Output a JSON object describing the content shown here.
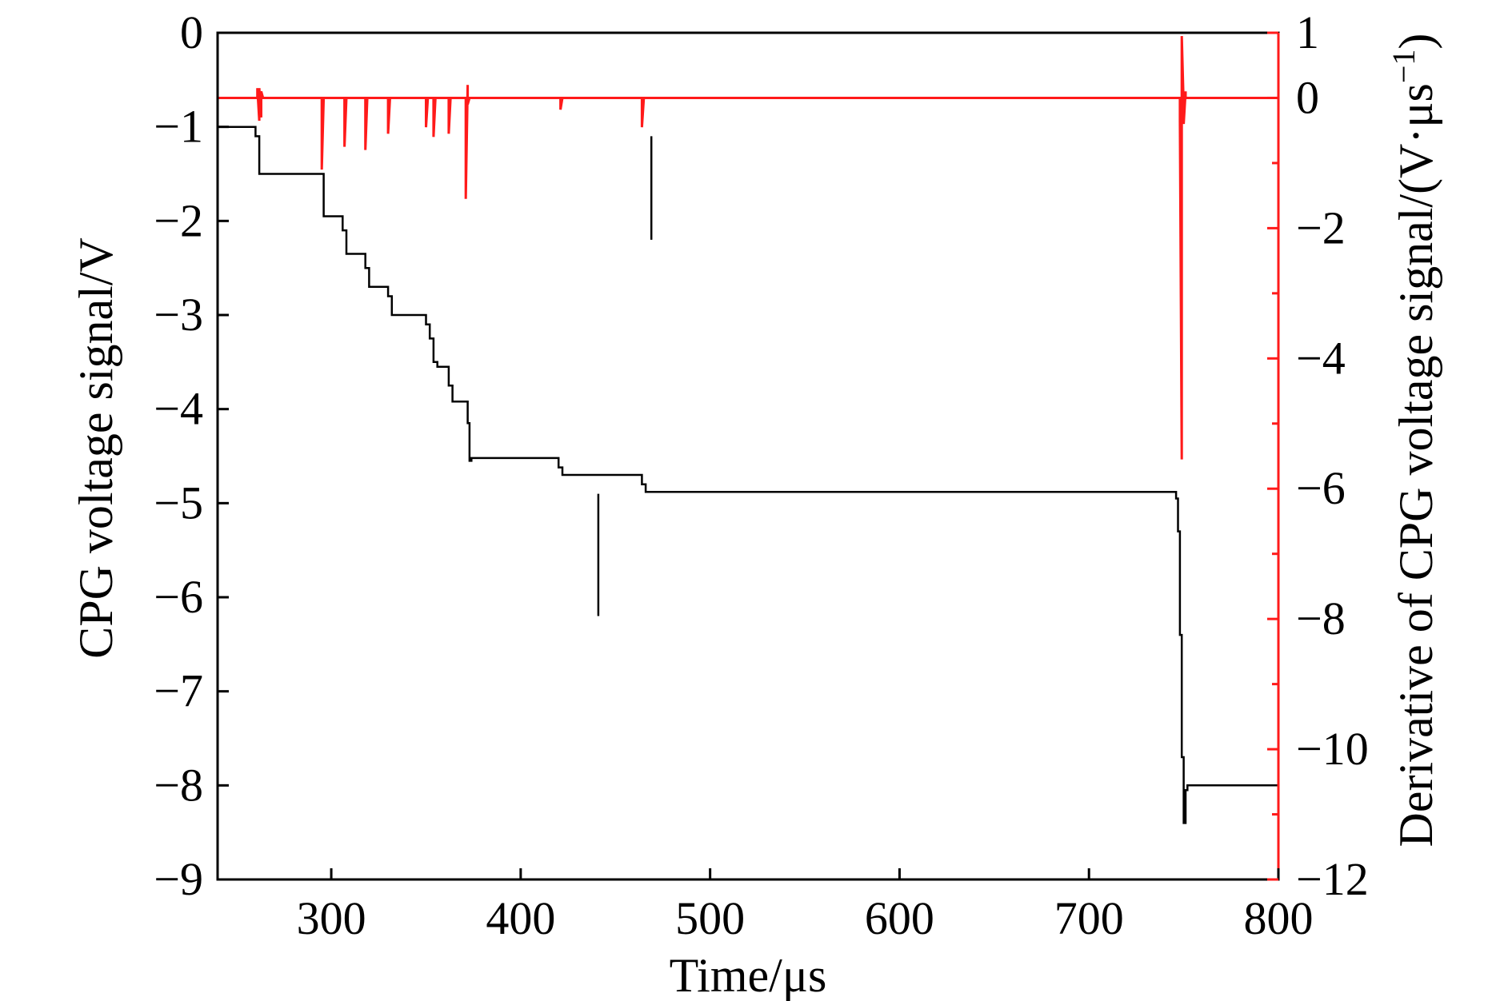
{
  "colors": {
    "primary": "#000000",
    "secondary": "#ff1a1a",
    "background": "#ffffff"
  },
  "chart_data": {
    "type": "line",
    "xlabel": "Time/μs",
    "ylabel_left": "CPG voltage signal/V",
    "ylabel_right": "Derivative of CPG voltage signal/(V·μs",
    "ylabel_right_sup": "−1",
    "ylabel_right_close": ")",
    "xlim": [
      240,
      800
    ],
    "ylim_left": [
      -9,
      0
    ],
    "ylim_right": [
      -12,
      1
    ],
    "x_ticks": [
      300,
      400,
      500,
      600,
      700,
      800
    ],
    "x_tick_labels": [
      "300",
      "400",
      "500",
      "600",
      "700",
      "800"
    ],
    "yleft_ticks": [
      0,
      -1,
      -2,
      -3,
      -4,
      -5,
      -6,
      -7,
      -8,
      -9
    ],
    "yleft_tick_labels": [
      "0",
      "−1",
      "−2",
      "−3",
      "−4",
      "−5",
      "−6",
      "−7",
      "−8",
      "−9"
    ],
    "yright_ticks": [
      1,
      0,
      -2,
      -4,
      -6,
      -8,
      -10,
      -12
    ],
    "yright_tick_labels": [
      "1",
      "0",
      "−2",
      "−4",
      "−6",
      "−8",
      "−10",
      "−12"
    ],
    "yright_minor_ticks": [
      -1,
      -3,
      -5,
      -7,
      -9,
      -11
    ],
    "series": [
      {
        "axis": "left",
        "x": [
          240,
          260,
          260,
          262,
          262,
          296,
          296,
          306,
          306,
          308,
          308,
          318,
          318,
          320,
          320,
          330,
          330,
          332,
          332,
          350,
          350,
          352,
          352,
          354,
          354,
          356,
          356,
          362,
          362,
          364,
          364,
          372,
          372,
          373,
          373,
          374,
          374,
          420,
          420,
          422,
          422,
          464,
          464,
          466,
          466,
          746,
          746,
          747,
          747,
          748,
          748,
          749,
          749,
          750,
          750,
          751,
          751,
          752,
          752,
          800
        ],
        "y": [
          -1.0,
          -1.0,
          -1.1,
          -1.1,
          -1.5,
          -1.5,
          -1.95,
          -1.95,
          -2.1,
          -2.1,
          -2.35,
          -2.35,
          -2.5,
          -2.5,
          -2.7,
          -2.7,
          -2.8,
          -2.8,
          -3.0,
          -3.0,
          -3.1,
          -3.1,
          -3.25,
          -3.25,
          -3.5,
          -3.5,
          -3.55,
          -3.55,
          -3.75,
          -3.75,
          -3.92,
          -3.92,
          -4.15,
          -4.15,
          -4.55,
          -4.55,
          -4.52,
          -4.52,
          -4.62,
          -4.62,
          -4.7,
          -4.7,
          -4.8,
          -4.8,
          -4.88,
          -4.88,
          -4.95,
          -4.95,
          -5.3,
          -5.3,
          -6.4,
          -6.4,
          -7.7,
          -7.7,
          -8.4,
          -8.4,
          -8.05,
          -8.05,
          -8.0,
          -8.0
        ]
      },
      {
        "axis": "left",
        "x": [
          469,
          469
        ],
        "y": [
          -1.1,
          -2.2
        ]
      },
      {
        "axis": "left",
        "x": [
          441,
          441
        ],
        "y": [
          -4.9,
          -6.2
        ]
      },
      {
        "axis": "right",
        "x": [
          240,
          261,
          261,
          262,
          262,
          263,
          263,
          264,
          264,
          295,
          295,
          296,
          296,
          307,
          307,
          308,
          308,
          318,
          318,
          319,
          319,
          330,
          330,
          331,
          331,
          350,
          350,
          351,
          351,
          354,
          354,
          355,
          355,
          362,
          362,
          363,
          363,
          371,
          371,
          372,
          372,
          373,
          373,
          421,
          421,
          422,
          422,
          464,
          464,
          465,
          465,
          748,
          748,
          749,
          749,
          750,
          750,
          751,
          751,
          752,
          752,
          800
        ],
        "y": [
          0,
          0,
          0.15,
          -0.35,
          0.15,
          -0.3,
          0.1,
          0,
          0,
          0,
          -1.1,
          0,
          0,
          0,
          -0.75,
          0,
          0,
          0,
          -0.8,
          0,
          0,
          0,
          -0.55,
          0,
          0,
          0,
          -0.45,
          0,
          0,
          0,
          -0.6,
          0,
          0,
          0,
          -0.55,
          0,
          0,
          0,
          -1.55,
          0.2,
          -0.1,
          0,
          0,
          0,
          -0.18,
          0,
          0,
          0,
          -0.45,
          0,
          0,
          0,
          -0.35,
          -5.55,
          0.95,
          -0.15,
          -0.4,
          0.1,
          0,
          0,
          0,
          0
        ]
      }
    ]
  }
}
